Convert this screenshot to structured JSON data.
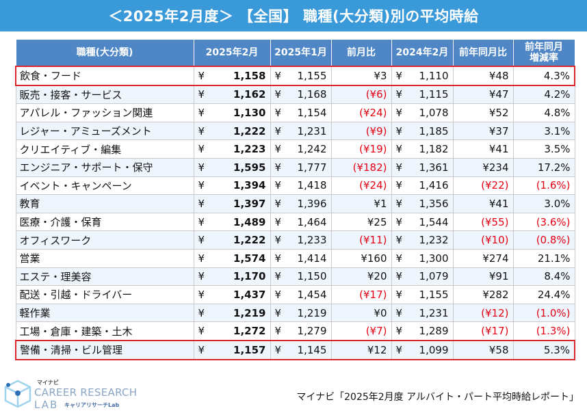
{
  "title": "＜2025年2月度＞ 【全国】 職種(大分類)別の平均時給",
  "headers": [
    "職種(大分類)",
    "2025年2月",
    "2025年1月",
    "前月比",
    "2024年2月",
    "前年同月比",
    "前年同月\n増減率"
  ],
  "header_line1": "前年同月",
  "header_line2": "増減率",
  "currency": "¥",
  "rows": [
    {
      "name": "飲食・フード",
      "feb25": "1,158",
      "jan25": "1,155",
      "mom": "¥3",
      "feb24": "1,110",
      "yoy": "¥48",
      "rate": "4.3%",
      "mom_neg": false,
      "yoy_neg": false,
      "rate_neg": false,
      "highlight": true
    },
    {
      "name": "販売・接客・サービス",
      "feb25": "1,162",
      "jan25": "1,168",
      "mom": "(¥6)",
      "feb24": "1,115",
      "yoy": "¥47",
      "rate": "4.2%",
      "mom_neg": true,
      "yoy_neg": false,
      "rate_neg": false,
      "highlight": false
    },
    {
      "name": "アパレル・ファッション関連",
      "feb25": "1,130",
      "jan25": "1,154",
      "mom": "(¥24)",
      "feb24": "1,078",
      "yoy": "¥52",
      "rate": "4.8%",
      "mom_neg": true,
      "yoy_neg": false,
      "rate_neg": false,
      "highlight": false
    },
    {
      "name": "レジャー・アミューズメント",
      "feb25": "1,222",
      "jan25": "1,231",
      "mom": "(¥9)",
      "feb24": "1,185",
      "yoy": "¥37",
      "rate": "3.1%",
      "mom_neg": true,
      "yoy_neg": false,
      "rate_neg": false,
      "highlight": false
    },
    {
      "name": "クリエイティブ・編集",
      "feb25": "1,223",
      "jan25": "1,242",
      "mom": "(¥19)",
      "feb24": "1,182",
      "yoy": "¥41",
      "rate": "3.5%",
      "mom_neg": true,
      "yoy_neg": false,
      "rate_neg": false,
      "highlight": false
    },
    {
      "name": "エンジニア・サポート・保守",
      "feb25": "1,595",
      "jan25": "1,777",
      "mom": "(¥182)",
      "feb24": "1,361",
      "yoy": "¥234",
      "rate": "17.2%",
      "mom_neg": true,
      "yoy_neg": false,
      "rate_neg": false,
      "highlight": false
    },
    {
      "name": "イベント・キャンペーン",
      "feb25": "1,394",
      "jan25": "1,418",
      "mom": "(¥24)",
      "feb24": "1,416",
      "yoy": "(¥22)",
      "rate": "(1.6%)",
      "mom_neg": true,
      "yoy_neg": true,
      "rate_neg": true,
      "highlight": false
    },
    {
      "name": "教育",
      "feb25": "1,397",
      "jan25": "1,396",
      "mom": "¥1",
      "feb24": "1,356",
      "yoy": "¥41",
      "rate": "3.0%",
      "mom_neg": false,
      "yoy_neg": false,
      "rate_neg": false,
      "highlight": false
    },
    {
      "name": "医療・介護・保育",
      "feb25": "1,489",
      "jan25": "1,464",
      "mom": "¥25",
      "feb24": "1,544",
      "yoy": "(¥55)",
      "rate": "(3.6%)",
      "mom_neg": false,
      "yoy_neg": true,
      "rate_neg": true,
      "highlight": false
    },
    {
      "name": "オフィスワーク",
      "feb25": "1,222",
      "jan25": "1,233",
      "mom": "(¥11)",
      "feb24": "1,232",
      "yoy": "(¥10)",
      "rate": "(0.8%)",
      "mom_neg": true,
      "yoy_neg": true,
      "rate_neg": true,
      "highlight": false
    },
    {
      "name": "営業",
      "feb25": "1,574",
      "jan25": "1,414",
      "mom": "¥160",
      "feb24": "1,300",
      "yoy": "¥274",
      "rate": "21.1%",
      "mom_neg": false,
      "yoy_neg": false,
      "rate_neg": false,
      "highlight": false
    },
    {
      "name": "エステ・理美容",
      "feb25": "1,170",
      "jan25": "1,150",
      "mom": "¥20",
      "feb24": "1,079",
      "yoy": "¥91",
      "rate": "8.4%",
      "mom_neg": false,
      "yoy_neg": false,
      "rate_neg": false,
      "highlight": false
    },
    {
      "name": "配送・引越・ドライバー",
      "feb25": "1,437",
      "jan25": "1,454",
      "mom": "(¥17)",
      "feb24": "1,155",
      "yoy": "¥282",
      "rate": "24.4%",
      "mom_neg": true,
      "yoy_neg": false,
      "rate_neg": false,
      "highlight": false
    },
    {
      "name": "軽作業",
      "feb25": "1,219",
      "jan25": "1,219",
      "mom": "¥0",
      "feb24": "1,231",
      "yoy": "(¥12)",
      "rate": "(1.0%)",
      "mom_neg": false,
      "yoy_neg": true,
      "rate_neg": true,
      "highlight": false
    },
    {
      "name": "工場・倉庫・建築・土木",
      "feb25": "1,272",
      "jan25": "1,279",
      "mom": "(¥7)",
      "feb24": "1,289",
      "yoy": "(¥17)",
      "rate": "(1.3%)",
      "mom_neg": true,
      "yoy_neg": true,
      "rate_neg": true,
      "highlight": false
    },
    {
      "name": "警備・清掃・ビル管理",
      "feb25": "1,157",
      "jan25": "1,145",
      "mom": "¥12",
      "feb24": "1,099",
      "yoy": "¥58",
      "rate": "5.3%",
      "mom_neg": false,
      "yoy_neg": false,
      "rate_neg": false,
      "highlight": true
    }
  ],
  "logo": {
    "small": "マイナビ",
    "line1": "CAREER RESEARCH",
    "line2": "LAB",
    "sub": "キャリアリサーチLab",
    "icon": "cube-logo-icon"
  },
  "source": "マイナビ「2025年2月度 アルバイト・パート平均時給レポート」",
  "colors": {
    "title_bg": "#3a9ad9",
    "header_bg": "#4f87c6",
    "negative": "#e60012",
    "highlight_border": "#d9252b",
    "stripe": "#eef5fc"
  }
}
